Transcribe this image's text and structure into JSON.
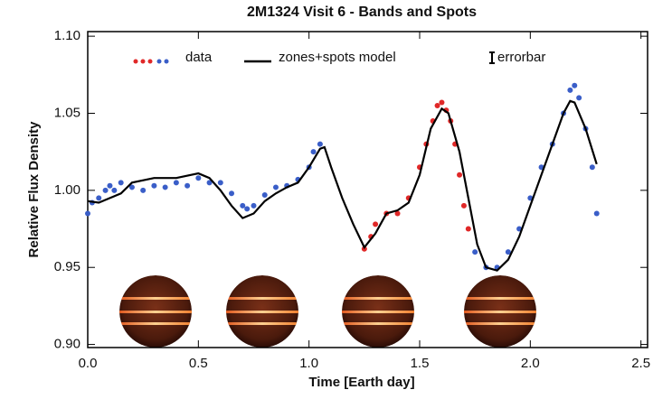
{
  "chart_data": {
    "type": "scatter",
    "title": "2M1324 Visit 6 - Bands and Spots",
    "xlabel": "Time [Earth day]",
    "ylabel": "Relative Flux Density",
    "xlim": [
      0,
      2.53
    ],
    "ylim": [
      0.898,
      1.103
    ],
    "xticks": [
      {
        "value": 0,
        "label": "0.0"
      },
      {
        "value": 0.5,
        "label": "0.5"
      },
      {
        "value": 1,
        "label": "1.0"
      },
      {
        "value": 1.5,
        "label": "1.5"
      },
      {
        "value": 2,
        "label": "2.0"
      },
      {
        "value": 2.5,
        "label": "2.5"
      }
    ],
    "yticks": [
      {
        "value": 0.9,
        "label": "0.90"
      },
      {
        "value": 0.95,
        "label": "0.95"
      },
      {
        "value": 1,
        "label": "1.00"
      },
      {
        "value": 1.05,
        "label": "1.05"
      },
      {
        "value": 1.1,
        "label": "1.10"
      }
    ],
    "errorbar_label": "errorbar",
    "series": [
      {
        "name": "data",
        "type": "scatter",
        "x": [
          0,
          0.02,
          0.05,
          0.08,
          0.1,
          0.12,
          0.15,
          0.2,
          0.25,
          0.3,
          0.35,
          0.4,
          0.45,
          0.5,
          0.55,
          0.6,
          0.65,
          0.7,
          0.72,
          0.75,
          0.8,
          0.85,
          0.9,
          0.95,
          1.0,
          1.02,
          1.05,
          1.25,
          1.28,
          1.3,
          1.35,
          1.4,
          1.45,
          1.5,
          1.53,
          1.56,
          1.58,
          1.6,
          1.62,
          1.64,
          1.66,
          1.68,
          1.7,
          1.72,
          1.75,
          1.8,
          1.85,
          1.9,
          1.95,
          2.0,
          2.05,
          2.1,
          2.15,
          2.18,
          2.2,
          2.22,
          2.25,
          2.28,
          2.3
        ],
        "values": [
          0.985,
          0.992,
          0.995,
          1.0,
          1.003,
          1.0,
          1.005,
          1.002,
          1.0,
          1.003,
          1.002,
          1.005,
          1.003,
          1.008,
          1.005,
          1.005,
          0.998,
          0.99,
          0.988,
          0.99,
          0.997,
          1.002,
          1.003,
          1.007,
          1.015,
          1.025,
          1.03,
          0.962,
          0.97,
          0.978,
          0.985,
          0.985,
          0.995,
          1.015,
          1.03,
          1.045,
          1.055,
          1.057,
          1.052,
          1.045,
          1.03,
          1.01,
          0.99,
          0.975,
          0.96,
          0.95,
          0.95,
          0.96,
          0.975,
          0.995,
          1.015,
          1.03,
          1.05,
          1.065,
          1.068,
          1.06,
          1.04,
          1.015,
          0.985
        ],
        "colors": [
          "#3a5ec8",
          "#3a5ec8",
          "#3a5ec8",
          "#3a5ec8",
          "#3a5ec8",
          "#3a5ec8",
          "#3a5ec8",
          "#3a5ec8",
          "#3a5ec8",
          "#3a5ec8",
          "#3a5ec8",
          "#3a5ec8",
          "#3a5ec8",
          "#3a5ec8",
          "#3a5ec8",
          "#3a5ec8",
          "#3a5ec8",
          "#3a5ec8",
          "#3a5ec8",
          "#3a5ec8",
          "#3a5ec8",
          "#3a5ec8",
          "#3a5ec8",
          "#3a5ec8",
          "#3a5ec8",
          "#3a5ec8",
          "#3a5ec8",
          "#e02828",
          "#e02828",
          "#e02828",
          "#e02828",
          "#e02828",
          "#e02828",
          "#e02828",
          "#e02828",
          "#e02828",
          "#e02828",
          "#e02828",
          "#e02828",
          "#e02828",
          "#e02828",
          "#e02828",
          "#e02828",
          "#e02828",
          "#3a5ec8",
          "#3a5ec8",
          "#3a5ec8",
          "#3a5ec8",
          "#3a5ec8",
          "#3a5ec8",
          "#3a5ec8",
          "#3a5ec8",
          "#3a5ec8",
          "#3a5ec8",
          "#3a5ec8",
          "#3a5ec8",
          "#3a5ec8",
          "#3a5ec8",
          "#3a5ec8"
        ]
      },
      {
        "name": "zones+spots model",
        "type": "line",
        "color": "#000000",
        "x": [
          0,
          0.05,
          0.1,
          0.15,
          0.2,
          0.3,
          0.4,
          0.5,
          0.55,
          0.6,
          0.65,
          0.7,
          0.75,
          0.8,
          0.85,
          0.9,
          0.95,
          1.0,
          1.05,
          1.07,
          1.1,
          1.15,
          1.2,
          1.25,
          1.3,
          1.35,
          1.4,
          1.45,
          1.5,
          1.55,
          1.6,
          1.63,
          1.68,
          1.72,
          1.76,
          1.8,
          1.85,
          1.9,
          1.95,
          2.0,
          2.05,
          2.1,
          2.15,
          2.18,
          2.2,
          2.25,
          2.3
        ],
        "values": [
          0.993,
          0.992,
          0.995,
          0.998,
          1.005,
          1.008,
          1.008,
          1.011,
          1.008,
          1.0,
          0.99,
          0.982,
          0.985,
          0.993,
          0.998,
          1.002,
          1.005,
          1.015,
          1.027,
          1.028,
          1.015,
          0.995,
          0.978,
          0.963,
          0.972,
          0.985,
          0.987,
          0.992,
          1.01,
          1.04,
          1.053,
          1.05,
          1.025,
          0.995,
          0.965,
          0.95,
          0.948,
          0.955,
          0.97,
          0.99,
          1.01,
          1.03,
          1.05,
          1.058,
          1.057,
          1.04,
          1.017
        ]
      }
    ]
  }
}
